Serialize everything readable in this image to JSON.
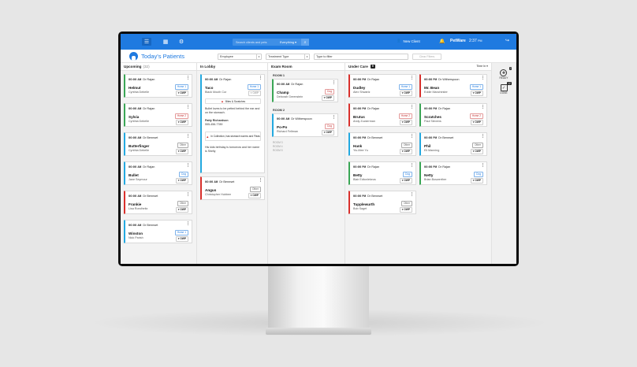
{
  "topbar": {
    "search_placeholder": "Search clients and pets",
    "search_scope": "Everything",
    "new_client": "New Client",
    "brand": "PetWare",
    "time": "2:37",
    "ampm": "PM"
  },
  "subbar": {
    "title": "Today's Patients",
    "employee": "Employee",
    "treatment_type": "Treatment Type",
    "filter_placeholder": "Type to filter",
    "clear_filters": "Clear Filters"
  },
  "columns": {
    "upcoming": {
      "label": "Upcoming",
      "count": "(32)"
    },
    "in_lobby": {
      "label": "In Lobby"
    },
    "exam_room": {
      "label": "Exam Room"
    },
    "under_care": {
      "label": "Under Care",
      "count": "9",
      "sort": "Time In"
    }
  },
  "upcoming": [
    {
      "time": "00:00",
      "ampm": "AM",
      "doctor": "Dr Rajan",
      "name": "Helmut",
      "owner": "Cynthia Debelle",
      "species": "Horse 1",
      "owp": "OWP"
    },
    {
      "time": "00:00",
      "ampm": "AM",
      "doctor": "Dr Rajan",
      "name": "Sylvia",
      "owner": "Cynthia Debelle",
      "species": "Horse 2",
      "owp": "OWP"
    },
    {
      "time": "00:00",
      "ampm": "AM",
      "doctor": "Dr Bennset",
      "name": "Butterfinger",
      "owner": "Cynthia Debelle",
      "species": "Other",
      "owp": "OWP"
    },
    {
      "time": "00:00",
      "ampm": "AM",
      "doctor": "Dr Rajan",
      "name": "Bullet",
      "owner": "Jane Seymour",
      "species": "Dog",
      "owp": "OWP"
    },
    {
      "time": "00:00",
      "ampm": "AM",
      "doctor": "Dr Bennset",
      "name": "Frankie",
      "owner": "Lisa Rondheitz",
      "species": "Other",
      "owp": "OWP"
    },
    {
      "time": "00:00",
      "ampm": "AM",
      "doctor": "Dr Bennset",
      "name": "Winston",
      "owner": "Nick Parish",
      "species": "Horse 1",
      "owp": "OWP"
    }
  ],
  "lobby": {
    "taco": {
      "time": "00:00",
      "ampm": "AM",
      "doctor": "Dr Rajan",
      "name": "Taco",
      "owner": "Black Mouth Cur",
      "species": "Horse 1",
      "owp": "OWP",
      "alert1": "Bites & Scratches",
      "note1": "Bullet loves to be petted behind the ear and on the stomach.",
      "contact_name": "Patty Richardson",
      "contact_phone": "555-456-7789",
      "alert2": "In Collection, has stomach worms and Fleas",
      "note2": "His kids birthday is tomorrow and her name is Shelly"
    },
    "angus": {
      "time": "00:00",
      "ampm": "AM",
      "doctor": "Dr Bennset",
      "name": "Angus",
      "owner": "Christopher Hubbee",
      "species": "Other",
      "owp": "OWP"
    }
  },
  "exam": {
    "room1": "ROOM 1",
    "room2": "ROOM 2",
    "champ": {
      "time": "00:00",
      "ampm": "AM",
      "doctor": "Dr Rajan",
      "name": "Champ",
      "owner": "Deborah Greenstein",
      "species": "Dog",
      "owp": "OWP"
    },
    "popo": {
      "time": "00:00",
      "ampm": "AM",
      "doctor": "Dr Witherspoon",
      "name": "Po-Po",
      "owner": "Richard Feltman",
      "species": "Dog",
      "owp": "OWP"
    },
    "room3": "ROOM 3",
    "room4": "ROOM 4",
    "room5": "ROOM 5"
  },
  "care_left": [
    {
      "time": "00:00",
      "ampm": "PM",
      "doctor": "Dr Rajan",
      "name": "Dudley",
      "owner": "Alex Shwartz",
      "species": "Horse 1",
      "owp": "OWP"
    },
    {
      "time": "00:00",
      "ampm": "PM",
      "doctor": "Dr Rajan",
      "name": "Brutus",
      "owner": "Andy Zuckerman",
      "species": "Horse 2",
      "owp": "OWP"
    },
    {
      "time": "00:00",
      "ampm": "PM",
      "doctor": "Dr Bennset",
      "name": "Hank",
      "owner": "Yiu-Mee Yu",
      "species": "Other",
      "owp": "OWP"
    },
    {
      "time": "00:00",
      "ampm": "PM",
      "doctor": "Dr Rajan",
      "name": "Betty",
      "owner": "Blair Edtonlekeus",
      "species": "Dog",
      "owp": "OWP"
    },
    {
      "time": "00:00",
      "ampm": "PM",
      "doctor": "Dr Bennset",
      "name": "Tupplewurth",
      "owner": "Bob Saget",
      "species": "Other",
      "owp": "OWP"
    }
  ],
  "care_right": [
    {
      "time": "00:00",
      "ampm": "PM",
      "doctor": "Dr Witherspoon",
      "name": "Mr. Bean",
      "owner": "Eddie Manchester",
      "species": "Horse 1",
      "owp": "OWP"
    },
    {
      "time": "00:00",
      "ampm": "PM",
      "doctor": "Dr Rajan",
      "name": "Scratches",
      "owner": "Paul Stevens",
      "species": "Horse 2",
      "owp": "OWP"
    },
    {
      "time": "00:00",
      "ampm": "PM",
      "doctor": "Dr Bennset",
      "name": "Phil",
      "owner": "Eli Manning",
      "species": "Other",
      "owp": "OWP"
    },
    {
      "time": "00:00",
      "ampm": "PM",
      "doctor": "Dr Rajan",
      "name": "Netty",
      "owner": "Brian Boswerther",
      "species": "Dog",
      "owp": "OWP"
    }
  ],
  "rail": {
    "ready": "READY",
    "ready_count": "2",
    "done": "DONE",
    "done_count": "12"
  }
}
